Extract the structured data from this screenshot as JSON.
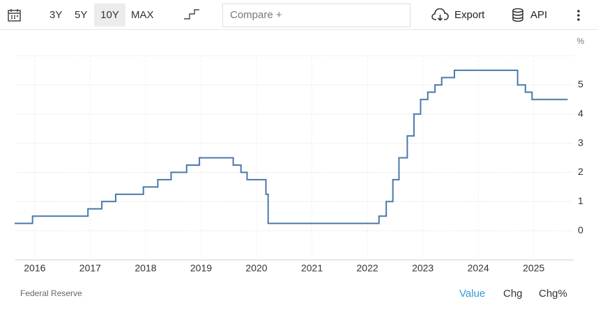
{
  "toolbar": {
    "ranges": [
      "3Y",
      "5Y",
      "10Y",
      "MAX"
    ],
    "active_range": 2,
    "compare": "Compare +",
    "export": "Export",
    "api": "API"
  },
  "chart_data": {
    "type": "step",
    "y_unit": "%",
    "color": "#4a78ac",
    "grid": true,
    "x": [
      2015.65,
      2015.96,
      2016.96,
      2017.21,
      2017.46,
      2017.96,
      2018.22,
      2018.46,
      2018.74,
      2018.97,
      2019.58,
      2019.72,
      2019.83,
      2020.17,
      2020.21,
      2022.21,
      2022.34,
      2022.46,
      2022.57,
      2022.72,
      2022.84,
      2022.96,
      2023.09,
      2023.22,
      2023.34,
      2023.57,
      2024.71,
      2024.85,
      2024.97,
      2025.6
    ],
    "values": [
      0.25,
      0.5,
      0.75,
      1.0,
      1.25,
      1.5,
      1.75,
      2.0,
      2.25,
      2.5,
      2.25,
      2.0,
      1.75,
      1.25,
      0.25,
      0.5,
      1.0,
      1.75,
      2.5,
      3.25,
      4.0,
      4.5,
      4.75,
      5.0,
      5.25,
      5.5,
      5.0,
      4.75,
      4.5,
      4.5
    ],
    "xlim": [
      2015.65,
      2025.72
    ],
    "xticks": [
      2016,
      2017,
      2018,
      2019,
      2020,
      2021,
      2022,
      2023,
      2024,
      2025
    ],
    "ylim": [
      -1,
      6
    ],
    "yticks": [
      0,
      1,
      2,
      3,
      4,
      5
    ]
  },
  "footer": {
    "source": "Federal Reserve",
    "tabs": [
      "Value",
      "Chg",
      "Chg%"
    ],
    "active_tab": 0
  }
}
